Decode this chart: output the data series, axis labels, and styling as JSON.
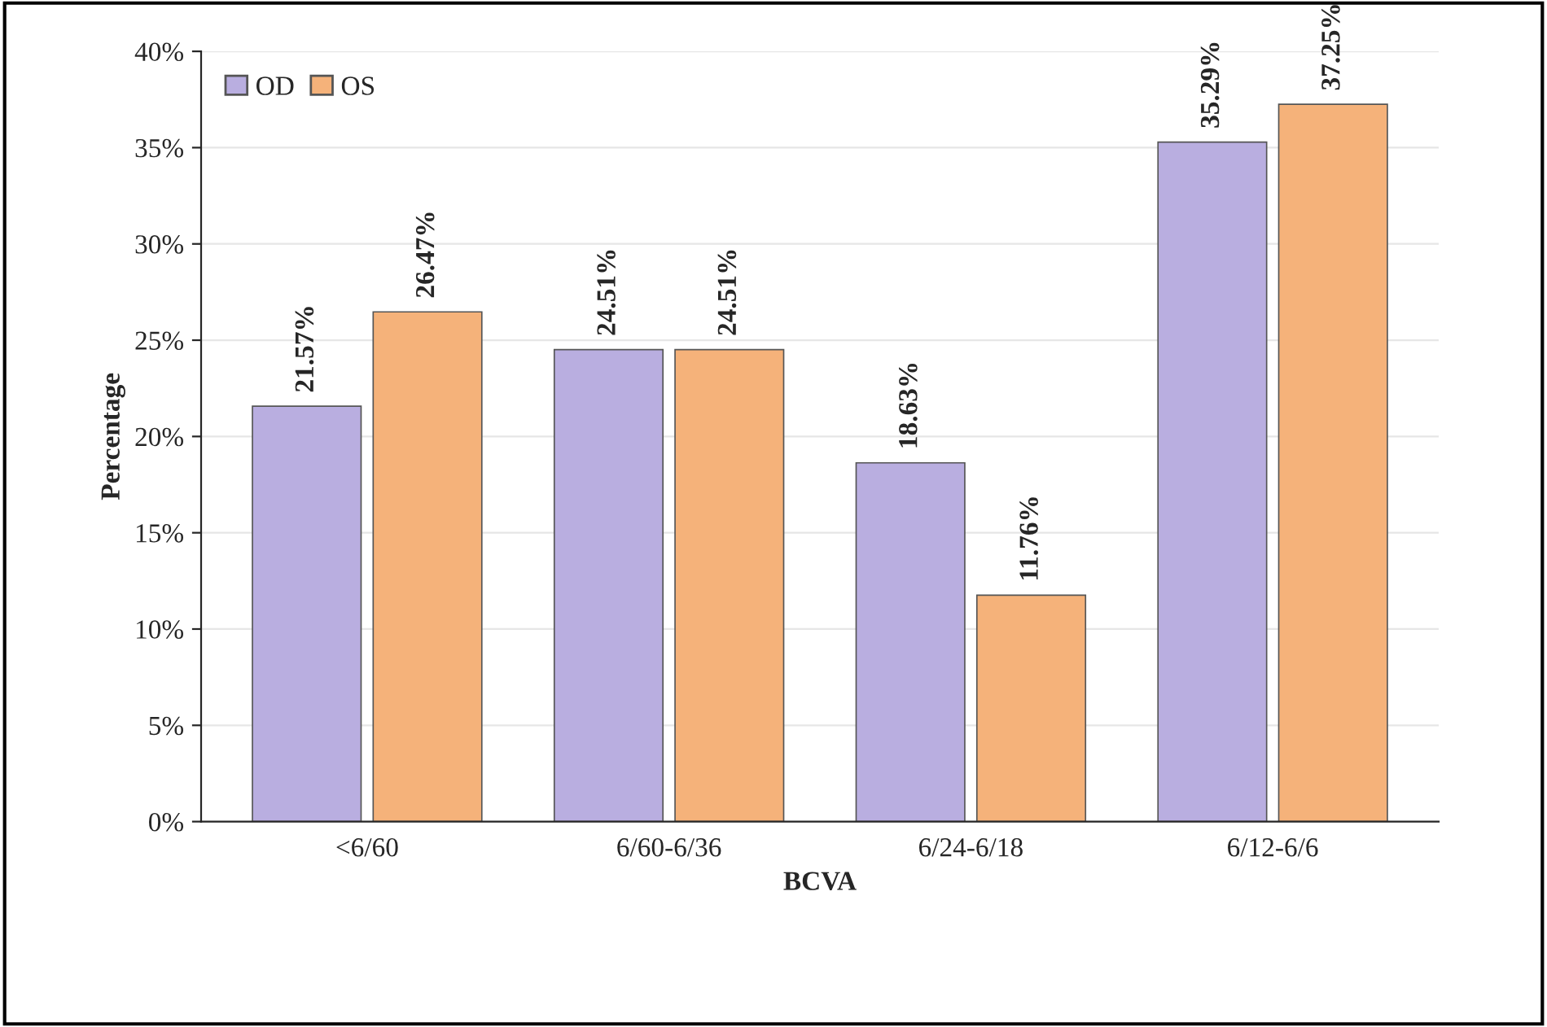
{
  "chart_data": {
    "type": "bar",
    "xlabel": "BCVA",
    "ylabel": "Percentage",
    "categories": [
      "<6/60",
      "6/60-6/36",
      "6/24-6/18",
      "6/12-6/6"
    ],
    "series": [
      {
        "name": "OD",
        "color": "#b9aee0",
        "values": [
          21.57,
          24.51,
          18.63,
          35.29
        ],
        "value_labels": [
          "21.57%",
          "24.51%",
          "18.63%",
          "35.29%"
        ]
      },
      {
        "name": "OS",
        "color": "#f5b27a",
        "values": [
          26.47,
          24.51,
          11.76,
          37.25
        ],
        "value_labels": [
          "26.47%",
          "24.51%",
          "11.76%",
          "37.25%"
        ]
      }
    ],
    "ylim": [
      0,
      40
    ],
    "yticks": [
      {
        "value": 0,
        "label": "0%"
      },
      {
        "value": 5,
        "label": "5%"
      },
      {
        "value": 10,
        "label": "10%"
      },
      {
        "value": 15,
        "label": "15%"
      },
      {
        "value": 20,
        "label": "20%"
      },
      {
        "value": 25,
        "label": "25%"
      },
      {
        "value": 30,
        "label": "30%"
      },
      {
        "value": 35,
        "label": "35%"
      },
      {
        "value": 40,
        "label": "40%"
      }
    ],
    "grid": "y",
    "legend": "top left"
  }
}
